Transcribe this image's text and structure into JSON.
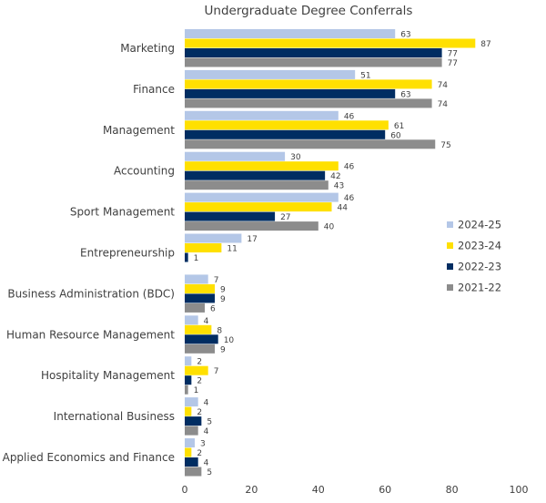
{
  "chart_data": {
    "type": "bar",
    "orientation": "horizontal",
    "title": "Undergraduate Degree Conferrals",
    "categories": [
      "Marketing",
      "Finance",
      "Management",
      "Accounting",
      "Sport Management",
      "Entrepreneurship",
      "Business Administration (BDC)",
      "Human Resource Management",
      "Hospitality Management",
      "International Business",
      "Applied Economics and Finance"
    ],
    "series": [
      {
        "name": "2024-25",
        "color": "#b4c7e7",
        "values": [
          63,
          51,
          46,
          30,
          46,
          17,
          7,
          4,
          2,
          4,
          3
        ]
      },
      {
        "name": "2023-24",
        "color": "#ffe000",
        "values": [
          87,
          74,
          61,
          46,
          44,
          11,
          9,
          8,
          7,
          2,
          2
        ]
      },
      {
        "name": "2022-23",
        "color": "#002d62",
        "values": [
          77,
          63,
          60,
          42,
          27,
          1,
          9,
          10,
          2,
          5,
          4
        ]
      },
      {
        "name": "2021-22",
        "color": "#8c8c8c",
        "values": [
          77,
          74,
          75,
          43,
          40,
          null,
          6,
          9,
          1,
          4,
          5
        ]
      }
    ],
    "xlim": [
      0,
      100
    ],
    "xticks": [
      0,
      20,
      40,
      60,
      80,
      100
    ],
    "grid": false,
    "legend": "right",
    "data_labels": true
  }
}
